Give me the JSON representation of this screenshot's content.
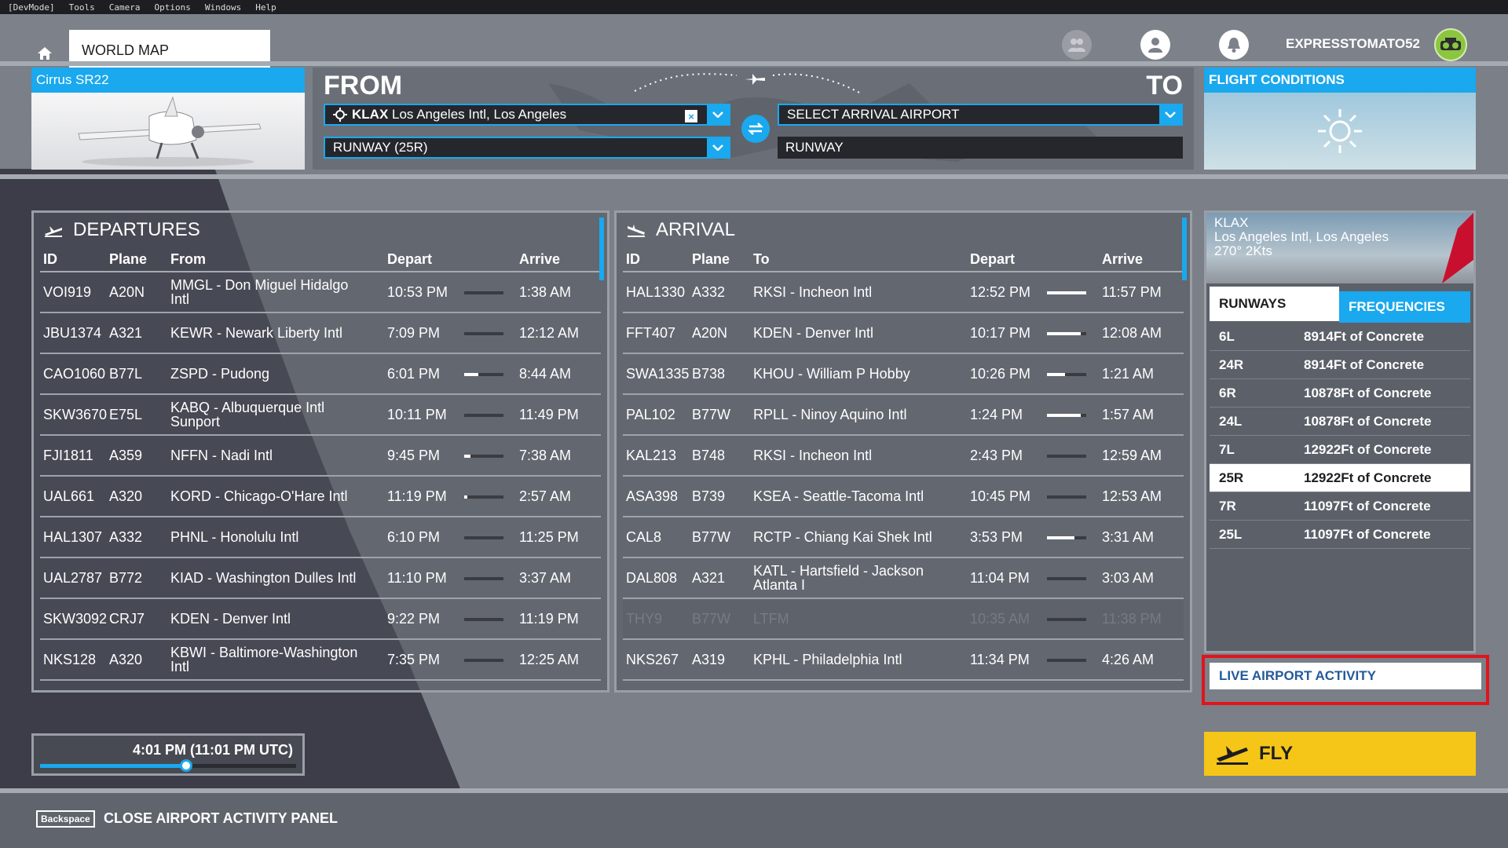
{
  "menubar": [
    "[DevMode]",
    "Tools",
    "Camera",
    "Options",
    "Windows",
    "Help"
  ],
  "header": {
    "world_map": "WORLD MAP",
    "username": "EXPRESSTOMATO52"
  },
  "aircraft": {
    "name": "Cirrus SR22"
  },
  "route": {
    "from_label": "FROM",
    "to_label": "TO",
    "departure_code": "KLAX",
    "departure_name": "Los Angeles Intl, Los Angeles",
    "departure_runway": "RUNWAY (25R)",
    "arrival_placeholder": "SELECT ARRIVAL AIRPORT",
    "arrival_runway": "RUNWAY"
  },
  "flight_conditions": {
    "title": "FLIGHT CONDITIONS",
    "icon": "sun-icon"
  },
  "departures": {
    "title": "DEPARTURES",
    "columns": [
      "ID",
      "Plane",
      "From",
      "Depart",
      "Arrive"
    ],
    "rows": [
      {
        "id": "VOI919",
        "plane": "A20N",
        "place": "MMGL - Don Miguel Hidalgo Intl",
        "depart": "10:53 PM",
        "arrive": "1:38 AM",
        "progress": 0.0
      },
      {
        "id": "JBU1374",
        "plane": "A321",
        "place": "KEWR - Newark Liberty Intl",
        "depart": "7:09 PM",
        "arrive": "12:12 AM",
        "progress": 0.0
      },
      {
        "id": "CAO1060",
        "plane": "B77L",
        "place": "ZSPD - Pudong",
        "depart": "6:01 PM",
        "arrive": "8:44 AM",
        "progress": 0.35
      },
      {
        "id": "SKW3670",
        "plane": "E75L",
        "place": "KABQ - Albuquerque Intl Sunport",
        "depart": "10:11 PM",
        "arrive": "11:49 PM",
        "progress": 0.0
      },
      {
        "id": "FJI1811",
        "plane": "A359",
        "place": "NFFN - Nadi Intl",
        "depart": "9:45 PM",
        "arrive": "7:38 AM",
        "progress": 0.15
      },
      {
        "id": "UAL661",
        "plane": "A320",
        "place": "KORD - Chicago-O'Hare Intl",
        "depart": "11:19 PM",
        "arrive": "2:57 AM",
        "progress": 0.08
      },
      {
        "id": "HAL1307",
        "plane": "A332",
        "place": "PHNL - Honolulu Intl",
        "depart": "6:10 PM",
        "arrive": "11:25 PM",
        "progress": 0.0
      },
      {
        "id": "UAL2787",
        "plane": "B772",
        "place": "KIAD - Washington Dulles Intl",
        "depart": "11:10 PM",
        "arrive": "3:37 AM",
        "progress": 0.0
      },
      {
        "id": "SKW3092",
        "plane": "CRJ7",
        "place": "KDEN - Denver Intl",
        "depart": "9:22 PM",
        "arrive": "11:19 PM",
        "progress": 0.0
      },
      {
        "id": "NKS128",
        "plane": "A320",
        "place": "KBWI - Baltimore-Washington Intl",
        "depart": "7:35 PM",
        "arrive": "12:25 AM",
        "progress": 0.0
      }
    ]
  },
  "arrivals": {
    "title": "ARRIVAL",
    "columns": [
      "ID",
      "Plane",
      "To",
      "Depart",
      "Arrive"
    ],
    "rows": [
      {
        "id": "HAL1330",
        "plane": "A332",
        "place": "RKSI - Incheon Intl",
        "depart": "12:52 PM",
        "arrive": "11:57 PM",
        "progress": 1.0
      },
      {
        "id": "FFT407",
        "plane": "A20N",
        "place": "KDEN - Denver Intl",
        "depart": "10:17 PM",
        "arrive": "12:08 AM",
        "progress": 0.85
      },
      {
        "id": "SWA1335",
        "plane": "B738",
        "place": "KHOU - William P Hobby",
        "depart": "10:26 PM",
        "arrive": "1:21 AM",
        "progress": 0.45
      },
      {
        "id": "PAL102",
        "plane": "B77W",
        "place": "RPLL - Ninoy Aquino Intl",
        "depart": "1:24 PM",
        "arrive": "1:57 AM",
        "progress": 0.85
      },
      {
        "id": "KAL213",
        "plane": "B748",
        "place": "RKSI - Incheon Intl",
        "depart": "2:43 PM",
        "arrive": "12:59 AM",
        "progress": 0.0
      },
      {
        "id": "ASA398",
        "plane": "B739",
        "place": "KSEA - Seattle-Tacoma Intl",
        "depart": "10:45 PM",
        "arrive": "12:53 AM",
        "progress": 0.0
      },
      {
        "id": "CAL8",
        "plane": "B77W",
        "place": "RCTP - Chiang Kai Shek Intl",
        "depart": "3:53 PM",
        "arrive": "3:31 AM",
        "progress": 0.7
      },
      {
        "id": "DAL808",
        "plane": "A321",
        "place": "KATL - Hartsfield - Jackson Atlanta I",
        "depart": "11:04 PM",
        "arrive": "3:03 AM",
        "progress": 0.0
      },
      {
        "id": "THY9",
        "plane": "B77W",
        "place": "LTFM",
        "depart": "10:35 AM",
        "arrive": "11:38 PM",
        "progress": 0.0,
        "dim": true
      },
      {
        "id": "NKS267",
        "plane": "A319",
        "place": "KPHL - Philadelphia Intl",
        "depart": "11:34 PM",
        "arrive": "4:26 AM",
        "progress": 0.0
      }
    ]
  },
  "airport_info": {
    "code": "KLAX",
    "name": "Los Angeles Intl, Los Angeles",
    "wind": "270° 2Kts",
    "tab_runways": "RUNWAYS",
    "tab_frequencies": "FREQUENCIES",
    "runways": [
      {
        "name": "6L",
        "desc": "8914Ft of Concrete"
      },
      {
        "name": "24R",
        "desc": "8914Ft of Concrete"
      },
      {
        "name": "6R",
        "desc": "10878Ft of Concrete"
      },
      {
        "name": "24L",
        "desc": "10878Ft of Concrete"
      },
      {
        "name": "7L",
        "desc": "12922Ft of Concrete"
      },
      {
        "name": "25R",
        "desc": "12922Ft of Concrete",
        "selected": true
      },
      {
        "name": "7R",
        "desc": "11097Ft of Concrete"
      },
      {
        "name": "25L",
        "desc": "11097Ft of Concrete"
      }
    ],
    "live_activity": "LIVE AIRPORT ACTIVITY"
  },
  "time": {
    "label": "4:01 PM (11:01 PM UTC)",
    "slider_fraction": 0.57
  },
  "fly_label": "FLY",
  "footer": {
    "key": "Backspace",
    "action": "CLOSE AIRPORT ACTIVITY PANEL"
  },
  "colors": {
    "accent": "#1aa8ee",
    "fly": "#f5c518",
    "highlight": "#e1141c"
  }
}
